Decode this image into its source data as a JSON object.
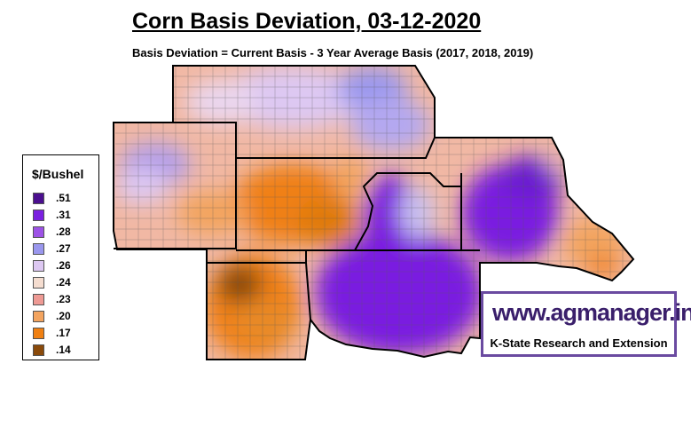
{
  "title": "Corn Basis Deviation, 03-12-2020",
  "subtitle": "Basis Deviation = Current Basis - 3 Year Average Basis (2017, 2018, 2019)",
  "legend": {
    "title": "$/Bushel",
    "items": [
      {
        "label": ".51",
        "color": "#4b0f8f"
      },
      {
        "label": ".31",
        "color": "#7a1fe0"
      },
      {
        "label": ".28",
        "color": "#9d52e6"
      },
      {
        "label": ".27",
        "color": "#9a97ee"
      },
      {
        "label": ".26",
        "color": "#ddc8f2"
      },
      {
        "label": ".24",
        "color": "#f5ddd0"
      },
      {
        "label": ".23",
        "color": "#ee9a94"
      },
      {
        "label": ".20",
        "color": "#f3a45f"
      },
      {
        "label": ".17",
        "color": "#f08012"
      },
      {
        "label": ".14",
        "color": "#8a4a0a"
      }
    ]
  },
  "branding": {
    "url": "www.agmanager.info",
    "org": "K-State Research and Extension"
  }
}
